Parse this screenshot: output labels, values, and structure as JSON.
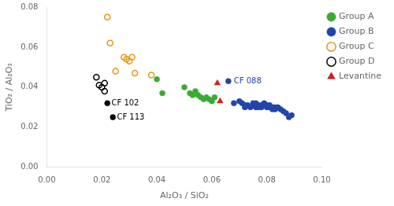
{
  "chart_data": {
    "type": "scatter",
    "xlabel": "Al₂O₃ / SiO₂",
    "ylabel": "TiO₂ / Al₂O₃",
    "xlim": [
      0.0,
      0.1
    ],
    "ylim": [
      0.0,
      0.08
    ],
    "xticks": [
      {
        "value": 0.0,
        "label": "0.00"
      },
      0.02,
      0.04,
      0.06,
      0.08,
      {
        "value": 0.1,
        "label": "0.10"
      }
    ],
    "yticks": [
      {
        "value": 0.0,
        "label": "0.00"
      },
      0.02,
      0.04,
      0.06,
      0.08
    ],
    "grid": false,
    "legend": "right",
    "series": [
      {
        "name": "Group A",
        "color": "#3aaa35",
        "marker": "circle",
        "x": [
          0.04,
          0.042,
          0.05,
          0.052,
          0.053,
          0.054,
          0.055,
          0.056,
          0.057,
          0.058,
          0.059,
          0.06,
          0.061
        ],
        "y": [
          0.044,
          0.037,
          0.04,
          0.037,
          0.036,
          0.038,
          0.036,
          0.035,
          0.034,
          0.035,
          0.034,
          0.033,
          0.035
        ]
      },
      {
        "name": "Group B",
        "color": "#2244aa",
        "marker": "circle",
        "x": [
          0.068,
          0.07,
          0.071,
          0.072,
          0.072,
          0.073,
          0.074,
          0.075,
          0.075,
          0.076,
          0.076,
          0.077,
          0.077,
          0.078,
          0.078,
          0.079,
          0.079,
          0.08,
          0.08,
          0.081,
          0.081,
          0.082,
          0.082,
          0.083,
          0.083,
          0.084,
          0.085,
          0.086,
          0.087,
          0.088,
          0.089
        ],
        "y": [
          0.032,
          0.033,
          0.032,
          0.031,
          0.03,
          0.031,
          0.03,
          0.032,
          0.031,
          0.03,
          0.032,
          0.031,
          0.03,
          0.031,
          0.03,
          0.031,
          0.032,
          0.03,
          0.031,
          0.03,
          0.031,
          0.029,
          0.03,
          0.03,
          0.029,
          0.03,
          0.029,
          0.028,
          0.027,
          0.025,
          0.026
        ]
      },
      {
        "color": "#2244aa",
        "marker": "circle",
        "x": [
          0.066
        ],
        "y": [
          0.043
        ]
      },
      {
        "name": "Group C",
        "color": "#e89510",
        "marker": "open_circle",
        "x": [
          0.022,
          0.023,
          0.025,
          0.028,
          0.029,
          0.03,
          0.031,
          0.032,
          0.038
        ],
        "y": [
          0.075,
          0.062,
          0.048,
          0.055,
          0.054,
          0.053,
          0.055,
          0.047,
          0.046
        ]
      },
      {
        "name": "Group D",
        "color": "#000000",
        "marker": "open_circle",
        "x": [
          0.018,
          0.019,
          0.02,
          0.021,
          0.021
        ],
        "y": [
          0.045,
          0.041,
          0.04,
          0.042,
          0.038
        ]
      },
      {
        "color": "#000000",
        "marker": "circle",
        "x": [
          0.022,
          0.024
        ],
        "y": [
          0.032,
          0.025
        ]
      },
      {
        "name": "Levantine",
        "color": "#cc2222",
        "marker": "triangle",
        "x": [
          0.062,
          0.063
        ],
        "y": [
          0.042,
          0.033
        ]
      }
    ],
    "annotations": [
      {
        "text": "CF 088",
        "x": 0.068,
        "y": 0.043,
        "color": "#2244aa"
      },
      {
        "text": "CF 102",
        "x": 0.0235,
        "y": 0.032,
        "color": "#000000"
      },
      {
        "text": "CF 113",
        "x": 0.0255,
        "y": 0.025,
        "color": "#000000"
      }
    ]
  }
}
